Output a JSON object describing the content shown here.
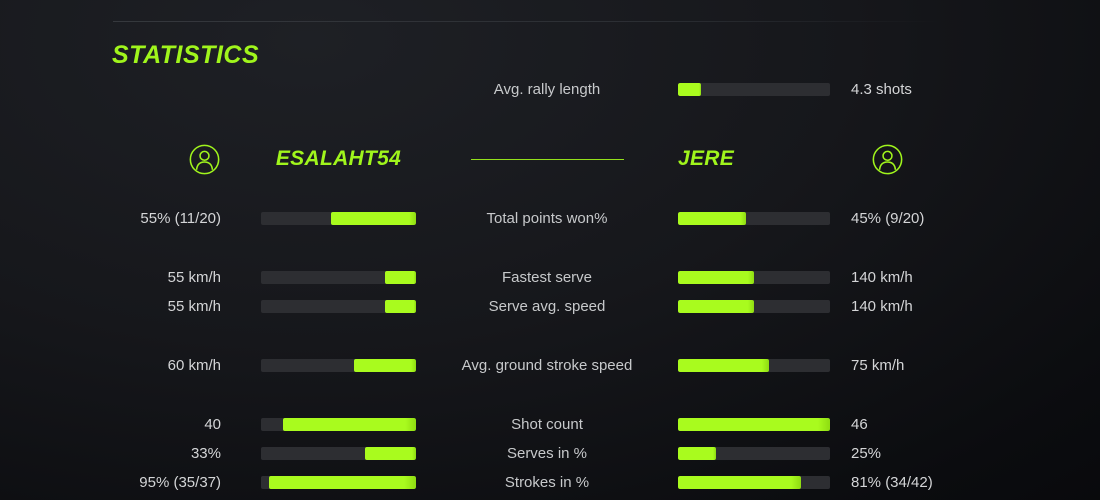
{
  "colors": {
    "accent": "#a0f51c",
    "bar_fill": "#a9fb1e",
    "bar_track": "#2d2e32"
  },
  "title": "STATISTICS",
  "rally": {
    "label": "Avg. rally length",
    "value": "4.3 shots",
    "fill_pct": 15
  },
  "players": {
    "left": "ESALAHT54",
    "right": "JERE",
    "icon": "user-avatar-icon"
  },
  "stats": [
    {
      "label": "Total points won%",
      "left_value": "55% (11/20)",
      "right_value": "45% (9/20)",
      "left_fill": 55,
      "right_fill": 45,
      "group_start": false
    },
    {
      "label": "Fastest serve",
      "left_value": "55 km/h",
      "right_value": "140 km/h",
      "left_fill": 20,
      "right_fill": 50,
      "group_start": true
    },
    {
      "label": "Serve avg. speed",
      "left_value": "55 km/h",
      "right_value": "140 km/h",
      "left_fill": 20,
      "right_fill": 50,
      "group_start": false
    },
    {
      "label": "Avg. ground stroke speed",
      "left_value": "60 km/h",
      "right_value": "75 km/h",
      "left_fill": 40,
      "right_fill": 60,
      "group_start": true
    },
    {
      "label": "Shot count",
      "left_value": "40",
      "right_value": "46",
      "left_fill": 86,
      "right_fill": 100,
      "group_start": true
    },
    {
      "label": "Serves in %",
      "left_value": "33%",
      "right_value": "25%",
      "left_fill": 33,
      "right_fill": 25,
      "group_start": false
    },
    {
      "label": "Strokes in %",
      "left_value": "95% (35/37)",
      "right_value": "81% (34/42)",
      "left_fill": 95,
      "right_fill": 81,
      "group_start": false
    }
  ]
}
